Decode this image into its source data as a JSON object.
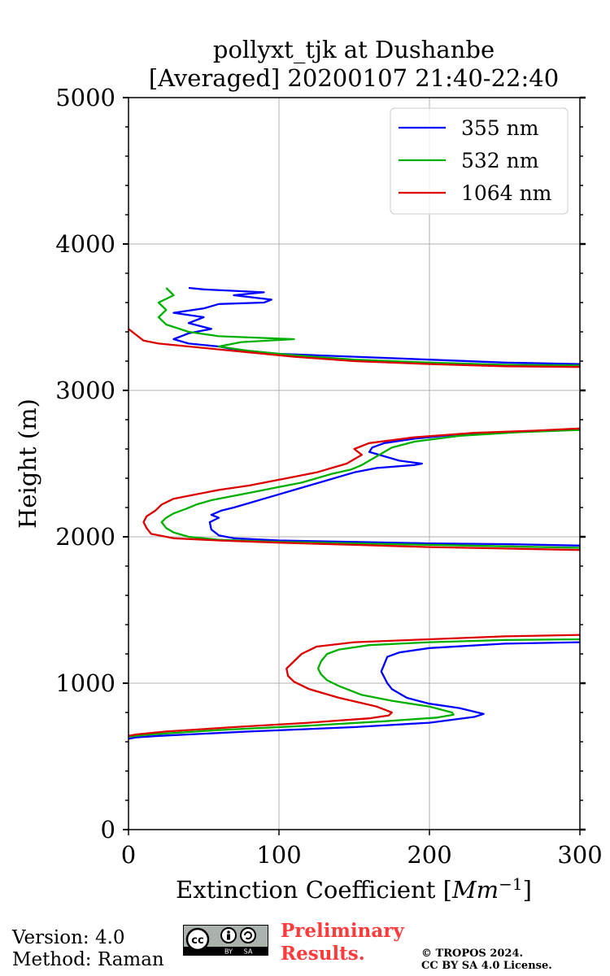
{
  "chart_data": {
    "type": "line",
    "title_line1": "pollyxt_tjk at Dushanbe",
    "title_line2": "[Averaged] 20200107 21:40-22:40",
    "xlabel_main": "Extinction Coefficient [",
    "xlabel_unit": "Mm",
    "xlabel_exp": "−1",
    "xlabel_close": "]",
    "ylabel": "Height (m)",
    "xlim": [
      0,
      300
    ],
    "ylim": [
      0,
      5000
    ],
    "xticks": [
      0,
      100,
      200,
      300
    ],
    "yticks": [
      0,
      1000,
      2000,
      3000,
      4000,
      5000
    ],
    "grid": true,
    "legend_position": "upper-right",
    "series": [
      {
        "name": "355 nm",
        "color": "#0000ff",
        "points": [
          [
            300,
            1280
          ],
          [
            250,
            1270
          ],
          [
            200,
            1240
          ],
          [
            180,
            1210
          ],
          [
            172,
            1180
          ],
          [
            170,
            1130
          ],
          [
            168,
            1080
          ],
          [
            170,
            1040
          ],
          [
            172,
            1000
          ],
          [
            175,
            960
          ],
          [
            185,
            900
          ],
          [
            200,
            860
          ],
          [
            220,
            830
          ],
          [
            232,
            800
          ],
          [
            236,
            790
          ],
          [
            230,
            770
          ],
          [
            200,
            730
          ],
          [
            150,
            700
          ],
          [
            80,
            670
          ],
          [
            20,
            640
          ],
          [
            5,
            630
          ],
          [
            0,
            620
          ],
          [
            null,
            null
          ],
          [
            300,
            1940
          ],
          [
            250,
            1950
          ],
          [
            200,
            1955
          ],
          [
            150,
            1965
          ],
          [
            100,
            1975
          ],
          [
            70,
            1990
          ],
          [
            60,
            2010
          ],
          [
            55,
            2050
          ],
          [
            54,
            2100
          ],
          [
            60,
            2130
          ],
          [
            55,
            2150
          ],
          [
            62,
            2180
          ],
          [
            70,
            2200
          ],
          [
            80,
            2230
          ],
          [
            90,
            2260
          ],
          [
            100,
            2290
          ],
          [
            110,
            2320
          ],
          [
            120,
            2350
          ],
          [
            130,
            2380
          ],
          [
            140,
            2410
          ],
          [
            150,
            2440
          ],
          [
            165,
            2470
          ],
          [
            190,
            2490
          ],
          [
            195,
            2500
          ],
          [
            180,
            2520
          ],
          [
            170,
            2550
          ],
          [
            160,
            2580
          ],
          [
            162,
            2610
          ],
          [
            170,
            2640
          ],
          [
            190,
            2670
          ],
          [
            220,
            2700
          ],
          [
            260,
            2720
          ],
          [
            300,
            2735
          ],
          [
            null,
            null
          ],
          [
            300,
            3180
          ],
          [
            250,
            3190
          ],
          [
            200,
            3210
          ],
          [
            150,
            3230
          ],
          [
            100,
            3250
          ],
          [
            70,
            3280
          ],
          [
            60,
            3300
          ],
          [
            40,
            3320
          ],
          [
            30,
            3350
          ],
          [
            40,
            3390
          ],
          [
            55,
            3420
          ],
          [
            40,
            3460
          ],
          [
            50,
            3500
          ],
          [
            30,
            3530
          ],
          [
            50,
            3560
          ],
          [
            60,
            3590
          ],
          [
            90,
            3600
          ],
          [
            95,
            3620
          ],
          [
            70,
            3650
          ],
          [
            90,
            3670
          ],
          [
            50,
            3690
          ],
          [
            40,
            3700
          ]
        ]
      },
      {
        "name": "532 nm",
        "color": "#00b000",
        "points": [
          [
            300,
            1300
          ],
          [
            250,
            1295
          ],
          [
            200,
            1280
          ],
          [
            160,
            1260
          ],
          [
            140,
            1230
          ],
          [
            132,
            1200
          ],
          [
            128,
            1150
          ],
          [
            126,
            1100
          ],
          [
            128,
            1060
          ],
          [
            132,
            1020
          ],
          [
            140,
            980
          ],
          [
            155,
            920
          ],
          [
            175,
            880
          ],
          [
            200,
            840
          ],
          [
            215,
            800
          ],
          [
            216,
            785
          ],
          [
            205,
            765
          ],
          [
            170,
            740
          ],
          [
            120,
            710
          ],
          [
            60,
            680
          ],
          [
            15,
            650
          ],
          [
            0,
            635
          ],
          [
            null,
            null
          ],
          [
            300,
            1925
          ],
          [
            250,
            1935
          ],
          [
            200,
            1945
          ],
          [
            150,
            1955
          ],
          [
            100,
            1965
          ],
          [
            60,
            1980
          ],
          [
            40,
            2000
          ],
          [
            30,
            2030
          ],
          [
            25,
            2060
          ],
          [
            22,
            2100
          ],
          [
            25,
            2130
          ],
          [
            30,
            2160
          ],
          [
            38,
            2190
          ],
          [
            45,
            2220
          ],
          [
            55,
            2250
          ],
          [
            70,
            2280
          ],
          [
            85,
            2310
          ],
          [
            100,
            2340
          ],
          [
            115,
            2370
          ],
          [
            125,
            2400
          ],
          [
            135,
            2430
          ],
          [
            148,
            2460
          ],
          [
            155,
            2490
          ],
          [
            160,
            2520
          ],
          [
            165,
            2550
          ],
          [
            170,
            2580
          ],
          [
            175,
            2610
          ],
          [
            190,
            2650
          ],
          [
            220,
            2690
          ],
          [
            260,
            2715
          ],
          [
            300,
            2730
          ],
          [
            null,
            null
          ],
          [
            300,
            3170
          ],
          [
            250,
            3175
          ],
          [
            200,
            3190
          ],
          [
            150,
            3210
          ],
          [
            110,
            3240
          ],
          [
            80,
            3270
          ],
          [
            60,
            3300
          ],
          [
            75,
            3330
          ],
          [
            110,
            3350
          ],
          [
            60,
            3370
          ],
          [
            40,
            3400
          ],
          [
            25,
            3450
          ],
          [
            20,
            3500
          ],
          [
            25,
            3550
          ],
          [
            20,
            3600
          ],
          [
            30,
            3650
          ],
          [
            25,
            3700
          ]
        ]
      },
      {
        "name": "1064 nm",
        "color": "#dd0000",
        "points": [
          [
            300,
            1330
          ],
          [
            250,
            1320
          ],
          [
            200,
            1300
          ],
          [
            150,
            1280
          ],
          [
            125,
            1250
          ],
          [
            115,
            1200
          ],
          [
            110,
            1150
          ],
          [
            105,
            1100
          ],
          [
            106,
            1050
          ],
          [
            110,
            1010
          ],
          [
            120,
            960
          ],
          [
            140,
            900
          ],
          [
            165,
            840
          ],
          [
            175,
            800
          ],
          [
            173,
            780
          ],
          [
            160,
            760
          ],
          [
            120,
            730
          ],
          [
            70,
            700
          ],
          [
            25,
            670
          ],
          [
            5,
            650
          ],
          [
            0,
            640
          ],
          [
            null,
            null
          ],
          [
            300,
            1910
          ],
          [
            250,
            1920
          ],
          [
            200,
            1930
          ],
          [
            150,
            1945
          ],
          [
            100,
            1960
          ],
          [
            60,
            1975
          ],
          [
            30,
            1990
          ],
          [
            15,
            2020
          ],
          [
            12,
            2060
          ],
          [
            10,
            2100
          ],
          [
            12,
            2140
          ],
          [
            18,
            2180
          ],
          [
            22,
            2220
          ],
          [
            30,
            2260
          ],
          [
            45,
            2290
          ],
          [
            60,
            2320
          ],
          [
            80,
            2350
          ],
          [
            95,
            2380
          ],
          [
            110,
            2410
          ],
          [
            125,
            2440
          ],
          [
            135,
            2470
          ],
          [
            145,
            2500
          ],
          [
            150,
            2530
          ],
          [
            155,
            2560
          ],
          [
            150,
            2600
          ],
          [
            160,
            2640
          ],
          [
            190,
            2680
          ],
          [
            230,
            2710
          ],
          [
            270,
            2725
          ],
          [
            300,
            2740
          ],
          [
            null,
            null
          ],
          [
            300,
            3160
          ],
          [
            250,
            3165
          ],
          [
            200,
            3180
          ],
          [
            150,
            3200
          ],
          [
            110,
            3230
          ],
          [
            80,
            3260
          ],
          [
            60,
            3280
          ],
          [
            40,
            3300
          ],
          [
            20,
            3320
          ],
          [
            10,
            3340
          ],
          [
            5,
            3380
          ],
          [
            0,
            3420
          ]
        ]
      }
    ]
  },
  "footer": {
    "version": "Version: 4.0",
    "method": "Method: Raman",
    "preliminary_line1": "Preliminary",
    "preliminary_line2": "Results.",
    "copyright_line1": "© TROPOS 2024.",
    "copyright_line2": "CC BY SA 4.0 License.",
    "badge_left": "BY",
    "badge_right": "SA",
    "badge_logo": "cc"
  }
}
